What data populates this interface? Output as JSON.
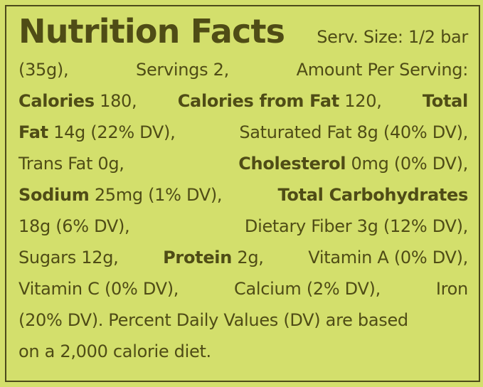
{
  "panel": {
    "title": "Nutrition Facts",
    "serving_size": "Serv. Size: 1/2 bar",
    "serving_size_grams": "(35g),",
    "servings": "Servings 2,",
    "amount_per_serving": "Amount Per Serving:",
    "calories_label": "Calories",
    "calories_value": "180,",
    "calories_from_fat_label": "Calories from Fat",
    "calories_from_fat_value": "120,",
    "total_fat_label_1": "Total",
    "total_fat_label_2": "Fat",
    "total_fat_value": "14g (22% DV),",
    "saturated_fat": "Saturated Fat 8g (40% DV),",
    "trans_fat": "Trans Fat 0g,",
    "cholesterol_label": "Cholesterol",
    "cholesterol_value": "0mg (0% DV),",
    "sodium_label": "Sodium",
    "sodium_value": "25mg (1% DV),",
    "total_carbohydrates_label": "Total Carbohydrates",
    "total_carbohydrates_value": "18g (6% DV),",
    "dietary_fiber": "Dietary Fiber 3g (12% DV),",
    "sugars": "Sugars 12g,",
    "protein_label": "Protein",
    "protein_value": "2g,",
    "vitamin_a": "Vitamin A (0% DV),",
    "vitamin_c": "Vitamin C (0% DV),",
    "calcium": "Calcium (2% DV),",
    "iron_label": "Iron",
    "iron_value": "(20% DV).",
    "footnote_1": "Percent Daily Values (DV) are based",
    "footnote_2": "on a 2,000 calorie diet."
  },
  "colors": {
    "background": "#d3df6c",
    "text": "#4f4c16",
    "border": "#4c4a1a"
  }
}
